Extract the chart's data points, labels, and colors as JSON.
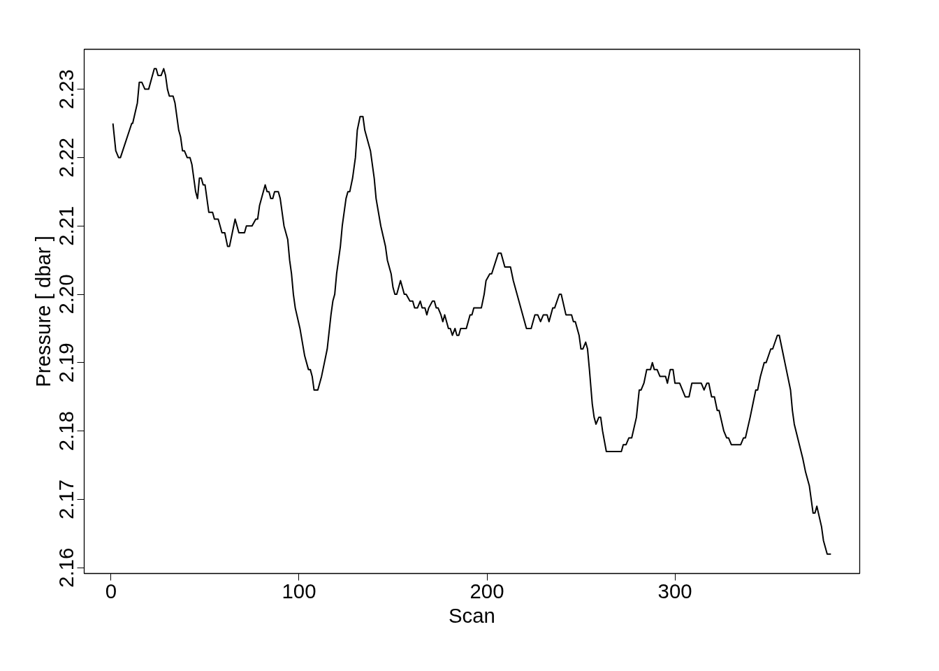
{
  "chart_data": {
    "type": "line",
    "xlabel": "Scan",
    "ylabel": "Pressure [ dbar ]",
    "xlim": [
      -14.3,
      398.3
    ],
    "ylim": [
      2.15916,
      2.23584
    ],
    "xticks": [
      0,
      100,
      200,
      300
    ],
    "yticks": [
      2.16,
      2.17,
      2.18,
      2.19,
      {
        "value": 2.2,
        "label": "2.20"
      },
      2.21,
      2.22,
      2.23
    ],
    "marker": "none",
    "line_style": "solid",
    "series": [
      {
        "color": "#000000",
        "x": [
          1,
          2.5,
          4,
          5,
          11,
          11.5,
          14,
          15,
          16.4,
          18,
          20,
          23,
          24,
          25,
          26.6,
          28,
          29,
          30,
          31,
          33,
          34,
          36,
          37,
          38,
          39,
          40.5,
          42,
          43,
          45,
          46,
          47,
          48,
          49,
          50,
          52,
          54,
          55,
          57,
          58,
          59,
          60.5,
          62,
          63,
          64.5,
          66,
          67,
          68,
          71,
          72,
          75,
          77,
          78,
          79,
          82,
          83,
          84,
          85,
          86,
          87,
          89,
          90,
          92,
          94,
          95,
          96,
          97,
          98,
          100.5,
          103,
          105,
          106,
          107,
          108,
          110,
          112,
          113.5,
          115,
          117,
          118,
          119,
          120,
          122,
          123,
          125,
          126,
          127,
          128.5,
          130,
          131,
          132.5,
          134,
          135,
          138,
          140,
          141,
          143.5,
          146,
          147,
          149,
          150,
          151,
          152,
          154,
          156,
          157,
          159,
          160.5,
          161.5,
          163,
          164.5,
          165.5,
          167,
          168,
          169,
          171,
          172,
          173,
          174,
          175.5,
          176.5,
          177.5,
          179.5,
          180.5,
          181.6,
          183,
          184,
          185,
          186,
          189,
          191,
          192,
          193,
          197,
          198.5,
          199.5,
          201.5,
          202.5,
          206,
          207.5,
          209.5,
          212.5,
          214,
          221,
          223.5,
          225.5,
          227,
          228.5,
          230,
          232,
          233,
          235,
          236,
          238.5,
          239.5,
          242,
          245,
          246,
          247,
          249,
          250,
          251,
          252.5,
          253.5,
          254.5,
          256,
          257,
          258,
          259.5,
          260.5,
          261.5,
          263.5,
          271.5,
          272.5,
          274,
          275.5,
          277,
          279.5,
          281,
          282,
          283.5,
          285,
          287,
          288,
          289,
          290.5,
          292,
          295,
          296,
          297.5,
          299,
          300,
          302.5,
          305.5,
          307.5,
          309,
          314,
          315.5,
          317,
          318,
          319.5,
          321,
          322.5,
          323.5,
          326,
          327.5,
          328.5,
          330,
          335,
          336.5,
          337.5,
          340,
          341.5,
          343,
          344,
          345.5,
          347.5,
          348.5,
          351,
          352,
          354.5,
          355.5,
          357,
          358.5,
          360,
          361.5,
          362.5,
          363.5,
          368,
          369.5,
          371.5,
          373.5,
          374.5,
          375.5,
          378,
          379,
          381,
          383
        ],
        "values": [
          2.225,
          2.221,
          2.22,
          2.22,
          2.225,
          2.225,
          2.228,
          2.231,
          2.231,
          2.23,
          2.23,
          2.233,
          2.233,
          2.232,
          2.232,
          2.233,
          2.232,
          2.23,
          2.229,
          2.229,
          2.228,
          2.224,
          2.223,
          2.221,
          2.221,
          2.22,
          2.22,
          2.219,
          2.215,
          2.214,
          2.217,
          2.217,
          2.216,
          2.216,
          2.212,
          2.212,
          2.211,
          2.211,
          2.21,
          2.209,
          2.209,
          2.207,
          2.207,
          2.209,
          2.211,
          2.21,
          2.209,
          2.209,
          2.21,
          2.21,
          2.211,
          2.211,
          2.213,
          2.216,
          2.215,
          2.215,
          2.214,
          2.214,
          2.215,
          2.215,
          2.214,
          2.21,
          2.208,
          2.205,
          2.203,
          2.2,
          2.198,
          2.195,
          2.191,
          2.189,
          2.189,
          2.188,
          2.186,
          2.186,
          2.188,
          2.19,
          2.192,
          2.197,
          2.199,
          2.2,
          2.203,
          2.207,
          2.21,
          2.214,
          2.215,
          2.215,
          2.217,
          2.22,
          2.224,
          2.226,
          2.226,
          2.224,
          2.221,
          2.217,
          2.214,
          2.21,
          2.207,
          2.205,
          2.203,
          2.201,
          2.2,
          2.2,
          2.202,
          2.2,
          2.2,
          2.199,
          2.199,
          2.198,
          2.198,
          2.199,
          2.198,
          2.198,
          2.197,
          2.198,
          2.199,
          2.199,
          2.198,
          2.198,
          2.197,
          2.196,
          2.197,
          2.195,
          2.195,
          2.194,
          2.195,
          2.194,
          2.194,
          2.195,
          2.195,
          2.197,
          2.197,
          2.198,
          2.198,
          2.2,
          2.202,
          2.203,
          2.203,
          2.206,
          2.206,
          2.204,
          2.204,
          2.202,
          2.195,
          2.195,
          2.197,
          2.197,
          2.196,
          2.197,
          2.197,
          2.196,
          2.198,
          2.198,
          2.2,
          2.2,
          2.197,
          2.197,
          2.196,
          2.196,
          2.194,
          2.192,
          2.192,
          2.193,
          2.192,
          2.189,
          2.184,
          2.182,
          2.181,
          2.182,
          2.182,
          2.18,
          2.177,
          2.177,
          2.178,
          2.178,
          2.179,
          2.179,
          2.182,
          2.186,
          2.186,
          2.187,
          2.189,
          2.189,
          2.19,
          2.189,
          2.189,
          2.188,
          2.188,
          2.187,
          2.189,
          2.189,
          2.187,
          2.187,
          2.185,
          2.185,
          2.187,
          2.187,
          2.186,
          2.187,
          2.187,
          2.185,
          2.185,
          2.183,
          2.183,
          2.18,
          2.179,
          2.179,
          2.178,
          2.178,
          2.179,
          2.179,
          2.182,
          2.184,
          2.186,
          2.186,
          2.188,
          2.19,
          2.19,
          2.192,
          2.192,
          2.194,
          2.194,
          2.192,
          2.19,
          2.188,
          2.186,
          2.183,
          2.181,
          2.176,
          2.174,
          2.172,
          2.168,
          2.168,
          2.169,
          2.166,
          2.164,
          2.162,
          2.162
        ]
      }
    ]
  }
}
